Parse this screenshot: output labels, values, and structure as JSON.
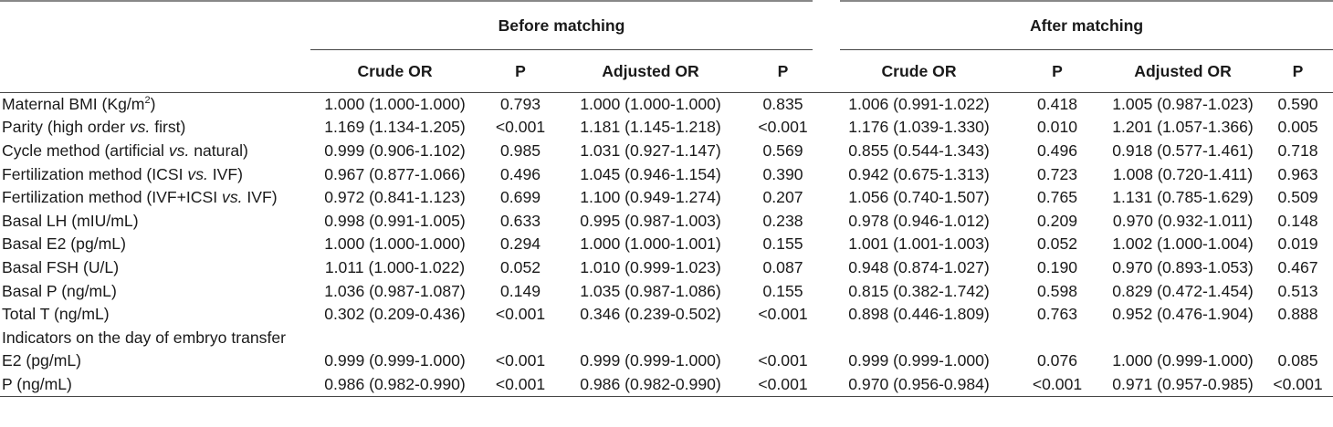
{
  "groups": {
    "before": "Before matching",
    "after": "After matching"
  },
  "columns": [
    "Crude OR",
    "P",
    "Adjusted OR",
    "P",
    "Crude OR",
    "P",
    "Adjusted OR",
    "P"
  ],
  "rows": [
    {
      "label": "Maternal BMI (Kg/m",
      "label_sup": "2",
      "label_tail": ")",
      "v": [
        "1.000 (1.000-1.000)",
        "0.793",
        "1.000 (1.000-1.000)",
        "0.835",
        "1.006 (0.991-1.022)",
        "0.418",
        "1.005 (0.987-1.023)",
        "0.590"
      ]
    },
    {
      "label": "Parity (high order ",
      "label_it": "vs.",
      "label_tail": " first)",
      "v": [
        "1.169 (1.134-1.205)",
        "<0.001",
        "1.181 (1.145-1.218)",
        "<0.001",
        "1.176 (1.039-1.330)",
        "0.010",
        "1.201 (1.057-1.366)",
        "0.005"
      ]
    },
    {
      "label": "Cycle method (artificial ",
      "label_it": "vs.",
      "label_tail": " natural)",
      "v": [
        "0.999 (0.906-1.102)",
        "0.985",
        "1.031 (0.927-1.147)",
        "0.569",
        "0.855 (0.544-1.343)",
        "0.496",
        "0.918 (0.577-1.461)",
        "0.718"
      ]
    },
    {
      "label": "Fertilization method (ICSI ",
      "label_it": "vs.",
      "label_tail": " IVF)",
      "v": [
        "0.967 (0.877-1.066)",
        "0.496",
        "1.045 (0.946-1.154)",
        "0.390",
        "0.942 (0.675-1.313)",
        "0.723",
        "1.008 (0.720-1.411)",
        "0.963"
      ]
    },
    {
      "label": "Fertilization method (IVF+ICSI ",
      "label_it": "vs.",
      "label_tail": " IVF)",
      "v": [
        "0.972 (0.841-1.123)",
        "0.699",
        "1.100 (0.949-1.274)",
        "0.207",
        "1.056 (0.740-1.507)",
        "0.765",
        "1.131 (0.785-1.629)",
        "0.509"
      ]
    },
    {
      "label": "Basal LH (mIU/mL)",
      "v": [
        "0.998 (0.991-1.005)",
        "0.633",
        "0.995 (0.987-1.003)",
        "0.238",
        "0.978 (0.946-1.012)",
        "0.209",
        "0.970 (0.932-1.011)",
        "0.148"
      ]
    },
    {
      "label": "Basal E2 (pg/mL)",
      "v": [
        "1.000 (1.000-1.000)",
        "0.294",
        "1.000 (1.000-1.001)",
        "0.155",
        "1.001 (1.001-1.003)",
        "0.052",
        "1.002 (1.000-1.004)",
        "0.019"
      ]
    },
    {
      "label": "Basal FSH (U/L)",
      "v": [
        "1.011 (1.000-1.022)",
        "0.052",
        "1.010 (0.999-1.023)",
        "0.087",
        "0.948 (0.874-1.027)",
        "0.190",
        "0.970 (0.893-1.053)",
        "0.467"
      ]
    },
    {
      "label": "Basal P (ng/mL)",
      "v": [
        "1.036 (0.987-1.087)",
        "0.149",
        "1.035 (0.987-1.086)",
        "0.155",
        "0.815 (0.382-1.742)",
        "0.598",
        "0.829 (0.472-1.454)",
        "0.513"
      ]
    },
    {
      "label": "Total T (ng/mL)",
      "v": [
        "0.302 (0.209-0.436)",
        "<0.001",
        "0.346 (0.239-0.502)",
        "<0.001",
        "0.898 (0.446-1.809)",
        "0.763",
        "0.952 (0.476-1.904)",
        "0.888"
      ]
    },
    {
      "section": "Indicators on the day of embryo transfer"
    },
    {
      "label": "E2 (pg/mL)",
      "v": [
        "0.999 (0.999-1.000)",
        "<0.001",
        "0.999 (0.999-1.000)",
        "<0.001",
        "0.999 (0.999-1.000)",
        "0.076",
        "1.000 (0.999-1.000)",
        "0.085"
      ]
    },
    {
      "label": "P (ng/mL)",
      "v": [
        "0.986 (0.982-0.990)",
        "<0.001",
        "0.986 (0.982-0.990)",
        "<0.001",
        "0.970 (0.956-0.984)",
        "<0.001",
        "0.971 (0.957-0.985)",
        "<0.001"
      ]
    }
  ]
}
